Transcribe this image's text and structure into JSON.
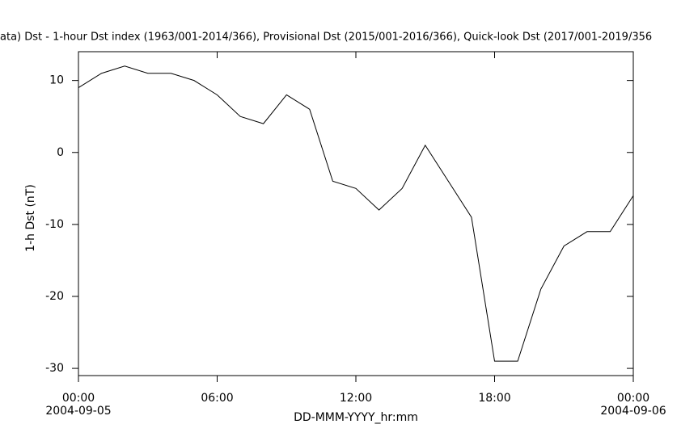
{
  "chart_data": {
    "type": "line",
    "title": "ata)  Dst - 1-hour Dst index (1963/001-2014/366), Provisional Dst (2015/001-2016/366), Quick-look Dst (2017/001-2019/356",
    "xlabel": "DD-MMM-YYYY_hr:mm",
    "ylabel": "1-h Dst (nT)",
    "x": [
      0,
      1,
      2,
      3,
      4,
      5,
      6,
      7,
      8,
      9,
      10,
      11,
      12,
      13,
      14,
      15,
      16,
      17,
      18,
      19,
      20,
      21,
      22,
      23,
      24
    ],
    "values": [
      9,
      11,
      12,
      11,
      11,
      10,
      8,
      5,
      4,
      8,
      6,
      -4,
      -5,
      -8,
      -5,
      1,
      -4,
      -9,
      -29,
      -29,
      -19,
      -13,
      -11,
      -11,
      -6
    ],
    "color": "#000000",
    "xlim": [
      0,
      24
    ],
    "xticks": [
      {
        "value": 0,
        "label": "00:00"
      },
      {
        "value": 6,
        "label": "06:00"
      },
      {
        "value": 12,
        "label": "12:00"
      },
      {
        "value": 18,
        "label": "18:00"
      },
      {
        "value": 24,
        "label": "00:00"
      }
    ],
    "xtick_dates": [
      {
        "value": 0,
        "label": "2004-09-05"
      },
      {
        "value": 24,
        "label": "2004-09-06"
      }
    ],
    "ylim": [
      -31,
      14
    ],
    "yticks": [
      10,
      0,
      -10,
      -20,
      -30
    ],
    "grid": false
  }
}
